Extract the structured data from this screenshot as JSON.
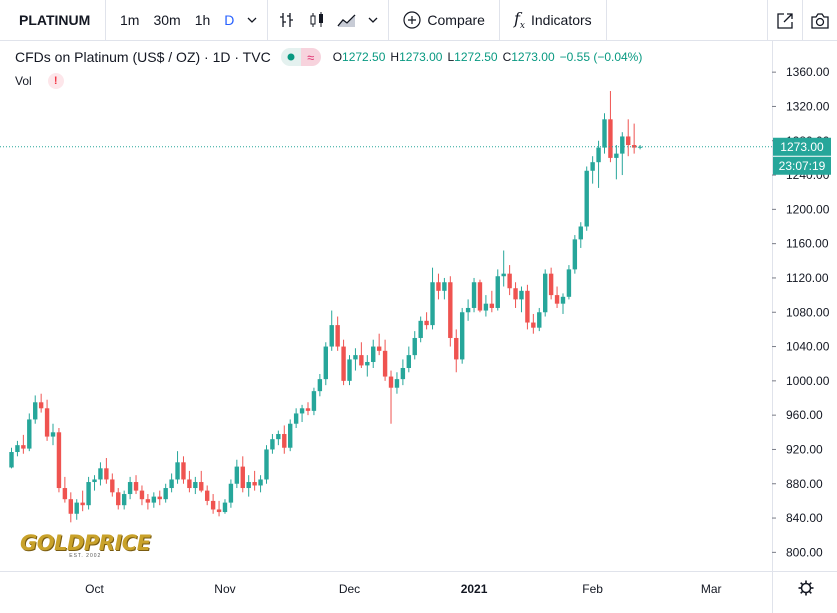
{
  "toolbar": {
    "symbol": "PLATINUM",
    "intervals": [
      "1m",
      "30m",
      "1h",
      "D"
    ],
    "active_interval": "D",
    "compare_label": "Compare",
    "indicators_label": "Indicators"
  },
  "legend": {
    "title": "CFDs on Platinum (US$ / OZ) · 1D · TVC",
    "o_key": "O",
    "o": "1272.50",
    "h_key": "H",
    "h": "1273.00",
    "l_key": "L",
    "l": "1272.50",
    "c_key": "C",
    "c": "1273.00",
    "change": "−0.55 (−0.04%)",
    "vol_label": "Vol",
    "vol_warning": "!"
  },
  "logo": {
    "text": "GOLDPRICE",
    "est": "EST. 2002"
  },
  "colors": {
    "up": "#26a69a",
    "down": "#ef5350",
    "accent": "#2962ff",
    "price_line": "#26a69a"
  },
  "chart_data": {
    "type": "candlestick",
    "title": "CFDs on Platinum (US$ / OZ)",
    "ylim": [
      780,
      1380
    ],
    "y_ticks": [
      "800.00",
      "840.00",
      "880.00",
      "920.00",
      "960.00",
      "1000.00",
      "1040.00",
      "1080.00",
      "1120.00",
      "1160.00",
      "1200.00",
      "1240.00",
      "1280.00",
      "1320.00",
      "1360.00"
    ],
    "x_ticks": [
      {
        "label": "Oct",
        "index": 14
      },
      {
        "label": "Nov",
        "index": 36
      },
      {
        "label": "Dec",
        "index": 57
      },
      {
        "label": "2021",
        "index": 78
      },
      {
        "label": "Feb",
        "index": 98
      },
      {
        "label": "Mar",
        "index": 118
      }
    ],
    "current_price": "1273.00",
    "countdown": "23:07:19",
    "candles": [
      [
        899,
        922,
        898,
        917
      ],
      [
        917,
        930,
        912,
        925
      ],
      [
        925,
        937,
        915,
        921
      ],
      [
        921,
        962,
        918,
        955
      ],
      [
        955,
        983,
        950,
        975
      ],
      [
        975,
        985,
        963,
        968
      ],
      [
        968,
        978,
        930,
        935
      ],
      [
        935,
        950,
        925,
        940
      ],
      [
        940,
        945,
        870,
        875
      ],
      [
        875,
        888,
        858,
        862
      ],
      [
        862,
        870,
        835,
        845
      ],
      [
        845,
        862,
        838,
        858
      ],
      [
        858,
        872,
        848,
        855
      ],
      [
        855,
        888,
        850,
        882
      ],
      [
        882,
        890,
        872,
        885
      ],
      [
        885,
        905,
        878,
        898
      ],
      [
        898,
        910,
        880,
        885
      ],
      [
        885,
        892,
        865,
        870
      ],
      [
        870,
        875,
        850,
        855
      ],
      [
        855,
        872,
        850,
        868
      ],
      [
        868,
        888,
        862,
        882
      ],
      [
        882,
        890,
        868,
        872
      ],
      [
        872,
        878,
        855,
        862
      ],
      [
        862,
        868,
        850,
        858
      ],
      [
        858,
        870,
        852,
        865
      ],
      [
        865,
        872,
        855,
        862
      ],
      [
        862,
        880,
        858,
        875
      ],
      [
        875,
        892,
        870,
        885
      ],
      [
        885,
        918,
        880,
        905
      ],
      [
        905,
        912,
        880,
        885
      ],
      [
        885,
        895,
        870,
        875
      ],
      [
        875,
        888,
        868,
        882
      ],
      [
        882,
        895,
        870,
        872
      ],
      [
        872,
        878,
        855,
        860
      ],
      [
        860,
        868,
        845,
        850
      ],
      [
        850,
        860,
        842,
        847
      ],
      [
        847,
        862,
        845,
        858
      ],
      [
        858,
        885,
        852,
        880
      ],
      [
        880,
        908,
        875,
        900
      ],
      [
        900,
        912,
        870,
        875
      ],
      [
        875,
        890,
        865,
        882
      ],
      [
        882,
        895,
        872,
        878
      ],
      [
        878,
        890,
        870,
        885
      ],
      [
        885,
        925,
        880,
        920
      ],
      [
        920,
        938,
        915,
        932
      ],
      [
        932,
        942,
        925,
        938
      ],
      [
        938,
        948,
        915,
        922
      ],
      [
        922,
        955,
        918,
        950
      ],
      [
        950,
        968,
        945,
        962
      ],
      [
        962,
        972,
        952,
        968
      ],
      [
        968,
        975,
        960,
        965
      ],
      [
        965,
        992,
        960,
        988
      ],
      [
        988,
        1008,
        982,
        1002
      ],
      [
        1002,
        1045,
        995,
        1040
      ],
      [
        1040,
        1082,
        1035,
        1065
      ],
      [
        1065,
        1075,
        1035,
        1040
      ],
      [
        1040,
        1048,
        995,
        1000
      ],
      [
        1000,
        1030,
        995,
        1025
      ],
      [
        1025,
        1038,
        1012,
        1030
      ],
      [
        1030,
        1045,
        1015,
        1018
      ],
      [
        1018,
        1030,
        1005,
        1022
      ],
      [
        1022,
        1048,
        1015,
        1040
      ],
      [
        1040,
        1055,
        1030,
        1035
      ],
      [
        1035,
        1048,
        1000,
        1005
      ],
      [
        1005,
        1012,
        950,
        992
      ],
      [
        992,
        1010,
        985,
        1002
      ],
      [
        1002,
        1025,
        995,
        1015
      ],
      [
        1015,
        1040,
        1010,
        1030
      ],
      [
        1030,
        1058,
        1025,
        1050
      ],
      [
        1050,
        1075,
        1045,
        1070
      ],
      [
        1070,
        1080,
        1060,
        1065
      ],
      [
        1065,
        1132,
        1060,
        1115
      ],
      [
        1115,
        1125,
        1095,
        1105
      ],
      [
        1105,
        1120,
        1095,
        1115
      ],
      [
        1115,
        1122,
        1040,
        1050
      ],
      [
        1050,
        1060,
        1010,
        1025
      ],
      [
        1025,
        1085,
        1020,
        1080
      ],
      [
        1080,
        1095,
        1070,
        1085
      ],
      [
        1085,
        1120,
        1080,
        1115
      ],
      [
        1115,
        1118,
        1080,
        1082
      ],
      [
        1082,
        1100,
        1075,
        1090
      ],
      [
        1090,
        1105,
        1080,
        1085
      ],
      [
        1085,
        1130,
        1082,
        1122
      ],
      [
        1122,
        1152,
        1110,
        1125
      ],
      [
        1125,
        1135,
        1100,
        1108
      ],
      [
        1108,
        1115,
        1085,
        1095
      ],
      [
        1095,
        1110,
        1080,
        1105
      ],
      [
        1105,
        1112,
        1060,
        1068
      ],
      [
        1068,
        1078,
        1055,
        1062
      ],
      [
        1062,
        1085,
        1058,
        1080
      ],
      [
        1080,
        1130,
        1075,
        1125
      ],
      [
        1125,
        1132,
        1095,
        1100
      ],
      [
        1100,
        1110,
        1085,
        1090
      ],
      [
        1090,
        1102,
        1078,
        1098
      ],
      [
        1098,
        1135,
        1095,
        1130
      ],
      [
        1130,
        1170,
        1125,
        1165
      ],
      [
        1165,
        1185,
        1155,
        1180
      ],
      [
        1180,
        1250,
        1175,
        1245
      ],
      [
        1245,
        1262,
        1230,
        1255
      ],
      [
        1255,
        1280,
        1225,
        1272
      ],
      [
        1272,
        1312,
        1265,
        1305
      ],
      [
        1305,
        1338,
        1255,
        1260
      ],
      [
        1260,
        1275,
        1235,
        1265
      ],
      [
        1265,
        1290,
        1240,
        1285
      ],
      [
        1285,
        1305,
        1262,
        1275
      ],
      [
        1275,
        1300,
        1265,
        1272
      ],
      [
        1272,
        1275,
        1270,
        1273
      ]
    ]
  }
}
